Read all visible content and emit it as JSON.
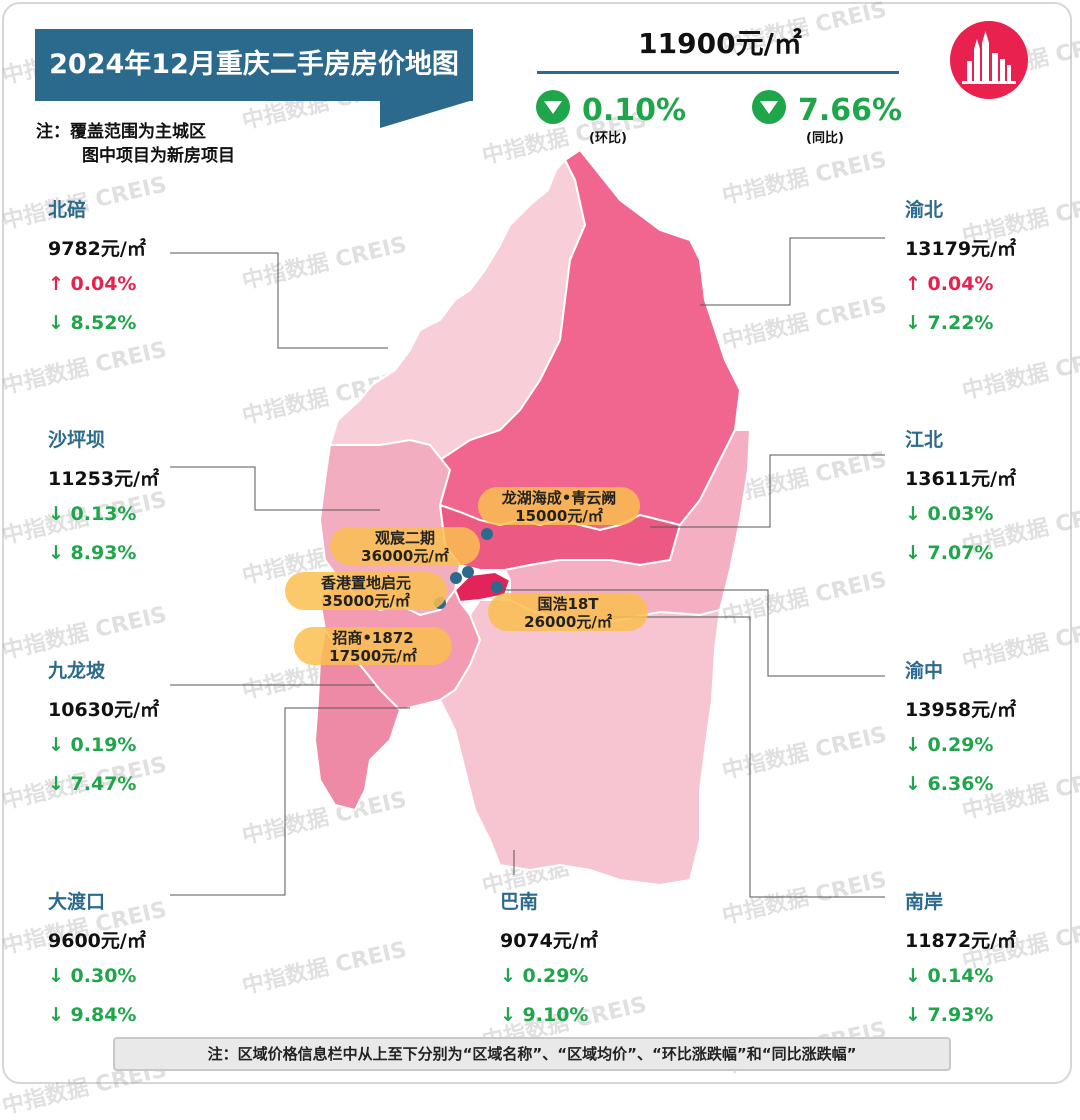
{
  "title": "2024年12月重庆二手房房价地图",
  "note_top": {
    "line1": "注：覆盖范围为主城区",
    "line2": "图中项目为新房项目"
  },
  "average": {
    "price": "11900元/㎡",
    "mom": "0.10%",
    "mom_label": "(环比)",
    "yoy": "7.66%",
    "yoy_label": "(同比)",
    "direction": "down"
  },
  "watermark": "中指数据 CREIS",
  "districts": [
    {
      "name": "北碚",
      "price": "9782元/㎡",
      "mom": "↑ 0.04%",
      "mom_dir": "up",
      "yoy": "↓ 8.52%",
      "yoy_dir": "down"
    },
    {
      "name": "渝北",
      "price": "13179元/㎡",
      "mom": "↑ 0.04%",
      "mom_dir": "up",
      "yoy": "↓ 7.22%",
      "yoy_dir": "down"
    },
    {
      "name": "沙坪坝",
      "price": "11253元/㎡",
      "mom": "↓ 0.13%",
      "mom_dir": "down",
      "yoy": "↓ 8.93%",
      "yoy_dir": "down"
    },
    {
      "name": "江北",
      "price": "13611元/㎡",
      "mom": "↓ 0.03%",
      "mom_dir": "down",
      "yoy": "↓ 7.07%",
      "yoy_dir": "down"
    },
    {
      "name": "九龙坡",
      "price": "10630元/㎡",
      "mom": "↓ 0.19%",
      "mom_dir": "down",
      "yoy": "↓ 7.47%",
      "yoy_dir": "down"
    },
    {
      "name": "渝中",
      "price": "13958元/㎡",
      "mom": "↓ 0.29%",
      "mom_dir": "down",
      "yoy": "↓ 6.36%",
      "yoy_dir": "down"
    },
    {
      "name": "大渡口",
      "price": "9600元/㎡",
      "mom": "↓ 0.30%",
      "mom_dir": "down",
      "yoy": "↓ 9.84%",
      "yoy_dir": "down"
    },
    {
      "name": "巴南",
      "price": "9074元/㎡",
      "mom": "↓ 0.29%",
      "mom_dir": "down",
      "yoy": "↓ 9.10%",
      "yoy_dir": "down"
    },
    {
      "name": "南岸",
      "price": "11872元/㎡",
      "mom": "↓ 0.14%",
      "mom_dir": "down",
      "yoy": "↓ 7.93%",
      "yoy_dir": "down"
    }
  ],
  "projects": [
    {
      "name": "龙湖海成•青云阙",
      "price": "15000元/㎡"
    },
    {
      "name": "观宸二期",
      "price": "36000元/㎡"
    },
    {
      "name": "香港置地启元",
      "price": "35000元/㎡"
    },
    {
      "name": "国浩18T",
      "price": "26000元/㎡"
    },
    {
      "name": "招商•1872",
      "price": "17500元/㎡"
    }
  ],
  "note_bottom": "注：区域价格信息栏中从上至下分别为“区域名称”、“区域均价”、“环比涨跌幅”和“同比涨跌幅”",
  "colors": {
    "title_bg": "#2b6a8c",
    "up": "#e8214e",
    "down": "#1fa64a",
    "yubei": "#f0668e",
    "beibei": "#f8cfd9",
    "shapingba": "#f2aec0",
    "jiulongpo": "#f29bb3",
    "banan": "#f7c4d1",
    "yuzhong": "#e2245a",
    "jiangbei": "#ec5a84",
    "nanan": "#f4b0c2",
    "dadukou": "#ee8aa6",
    "project_label": "#fabe50",
    "project_dot": "#2b6a8c"
  }
}
